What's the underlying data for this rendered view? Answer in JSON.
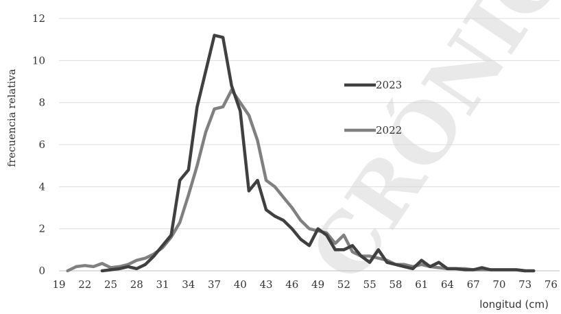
{
  "chart_data": {
    "type": "line",
    "title": "",
    "xlabel": "longitud (cm)",
    "ylabel": "frecuencia relativa",
    "xlim": [
      19,
      77
    ],
    "ylim": [
      0,
      12
    ],
    "x_ticks": [
      19,
      22,
      25,
      28,
      31,
      34,
      37,
      40,
      43,
      46,
      49,
      52,
      55,
      58,
      61,
      64,
      67,
      70,
      73,
      76
    ],
    "y_ticks": [
      0,
      2,
      4,
      6,
      8,
      10,
      12
    ],
    "grid": "horizontal",
    "legend_position": "right-middle",
    "series": [
      {
        "name": "2023",
        "color": "#404040",
        "points": [
          [
            24,
            0.0
          ],
          [
            25,
            0.05
          ],
          [
            26,
            0.1
          ],
          [
            27,
            0.2
          ],
          [
            28,
            0.1
          ],
          [
            29,
            0.3
          ],
          [
            30,
            0.7
          ],
          [
            31,
            1.2
          ],
          [
            32,
            1.7
          ],
          [
            33,
            4.3
          ],
          [
            34,
            4.8
          ],
          [
            35,
            7.8
          ],
          [
            36,
            9.5
          ],
          [
            37,
            11.2
          ],
          [
            38,
            11.1
          ],
          [
            39,
            8.8
          ],
          [
            40,
            7.6
          ],
          [
            41,
            3.8
          ],
          [
            42,
            4.3
          ],
          [
            43,
            2.9
          ],
          [
            44,
            2.6
          ],
          [
            45,
            2.4
          ],
          [
            46,
            2.0
          ],
          [
            47,
            1.5
          ],
          [
            48,
            1.2
          ],
          [
            49,
            2.0
          ],
          [
            50,
            1.7
          ],
          [
            51,
            1.0
          ],
          [
            52,
            1.0
          ],
          [
            53,
            1.2
          ],
          [
            54,
            0.7
          ],
          [
            55,
            0.4
          ],
          [
            56,
            1.0
          ],
          [
            57,
            0.4
          ],
          [
            58,
            0.3
          ],
          [
            59,
            0.2
          ],
          [
            60,
            0.1
          ],
          [
            61,
            0.5
          ],
          [
            62,
            0.2
          ],
          [
            63,
            0.4
          ],
          [
            64,
            0.1
          ],
          [
            65,
            0.1
          ],
          [
            66,
            0.05
          ],
          [
            67,
            0.05
          ],
          [
            68,
            0.15
          ],
          [
            69,
            0.05
          ],
          [
            70,
            0.05
          ],
          [
            71,
            0.05
          ],
          [
            72,
            0.05
          ],
          [
            73,
            0.0
          ],
          [
            74,
            0.0
          ]
        ]
      },
      {
        "name": "2022",
        "color": "#808080",
        "points": [
          [
            20,
            0.0
          ],
          [
            21,
            0.2
          ],
          [
            22,
            0.25
          ],
          [
            23,
            0.2
          ],
          [
            24,
            0.35
          ],
          [
            25,
            0.15
          ],
          [
            26,
            0.2
          ],
          [
            27,
            0.3
          ],
          [
            28,
            0.5
          ],
          [
            29,
            0.6
          ],
          [
            30,
            0.8
          ],
          [
            31,
            1.1
          ],
          [
            32,
            1.6
          ],
          [
            33,
            2.3
          ],
          [
            34,
            3.6
          ],
          [
            35,
            5.0
          ],
          [
            36,
            6.6
          ],
          [
            37,
            7.7
          ],
          [
            38,
            7.8
          ],
          [
            39,
            8.6
          ],
          [
            40,
            8.0
          ],
          [
            41,
            7.4
          ],
          [
            42,
            6.2
          ],
          [
            43,
            4.3
          ],
          [
            44,
            4.0
          ],
          [
            45,
            3.5
          ],
          [
            46,
            3.0
          ],
          [
            47,
            2.4
          ],
          [
            48,
            2.0
          ],
          [
            49,
            1.9
          ],
          [
            50,
            1.8
          ],
          [
            51,
            1.3
          ],
          [
            52,
            1.7
          ],
          [
            53,
            0.9
          ],
          [
            54,
            0.7
          ],
          [
            55,
            0.7
          ],
          [
            56,
            0.6
          ],
          [
            57,
            0.5
          ],
          [
            58,
            0.3
          ],
          [
            59,
            0.3
          ],
          [
            60,
            0.2
          ],
          [
            61,
            0.3
          ],
          [
            62,
            0.2
          ],
          [
            63,
            0.15
          ],
          [
            64,
            0.1
          ],
          [
            65,
            0.1
          ],
          [
            66,
            0.1
          ],
          [
            67,
            0.05
          ],
          [
            68,
            0.05
          ],
          [
            69,
            0.05
          ],
          [
            70,
            0.05
          ],
          [
            71,
            0.05
          ],
          [
            72,
            0.05
          ],
          [
            73,
            0.0
          ]
        ]
      }
    ]
  },
  "watermark": {
    "text": "CRÓNICA LI",
    "color": "#d8d8d8"
  }
}
